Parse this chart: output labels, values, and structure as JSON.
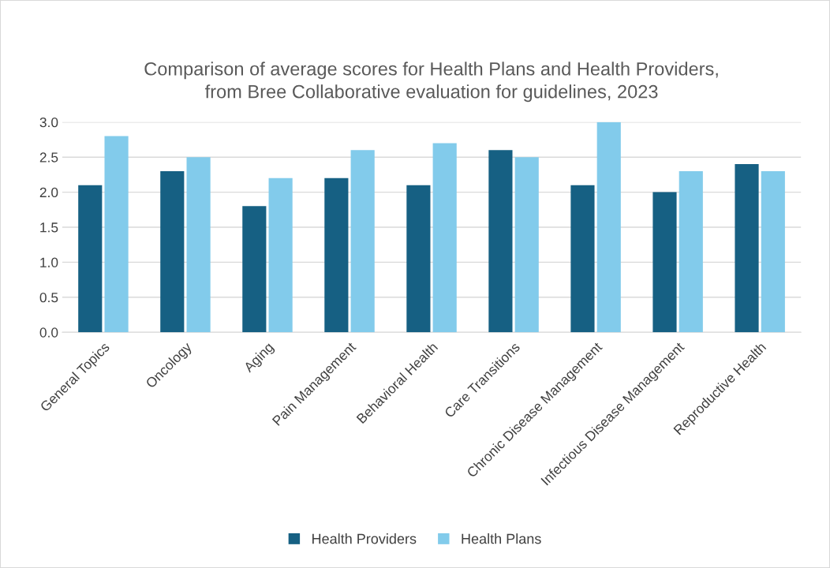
{
  "chart_data": {
    "type": "bar",
    "title": "Comparison of average scores for Health Plans and Health Providers,\nfrom Bree Collaborative evaluation for guidelines, 2023",
    "categories": [
      "General Topics",
      "Oncology",
      "Aging",
      "Pain Management",
      "Behavioral Health",
      "Care Transitions",
      "Chronic Disease Management",
      "Infectious Disease Management",
      "Reproductive Health"
    ],
    "series": [
      {
        "name": "Health Providers",
        "color": "#166083",
        "values": [
          2.1,
          2.3,
          1.8,
          2.2,
          2.1,
          2.6,
          2.1,
          2.0,
          2.4
        ]
      },
      {
        "name": "Health Plans",
        "color": "#82cbeb",
        "values": [
          2.8,
          2.5,
          2.2,
          2.6,
          2.7,
          2.5,
          3.0,
          2.3,
          2.3
        ]
      }
    ],
    "ylim": [
      0,
      3.0
    ],
    "yticks": [
      {
        "value": 0,
        "label": "0.0"
      },
      {
        "value": 0.5,
        "label": "0.5"
      },
      {
        "value": 1.0,
        "label": "1.0"
      },
      {
        "value": 1.5,
        "label": "1.5"
      },
      {
        "value": 2.0,
        "label": "2.0"
      },
      {
        "value": 2.5,
        "label": "2.5"
      },
      {
        "value": 3.0,
        "label": "3.0"
      }
    ],
    "grid": "y",
    "legend": "bottom"
  }
}
